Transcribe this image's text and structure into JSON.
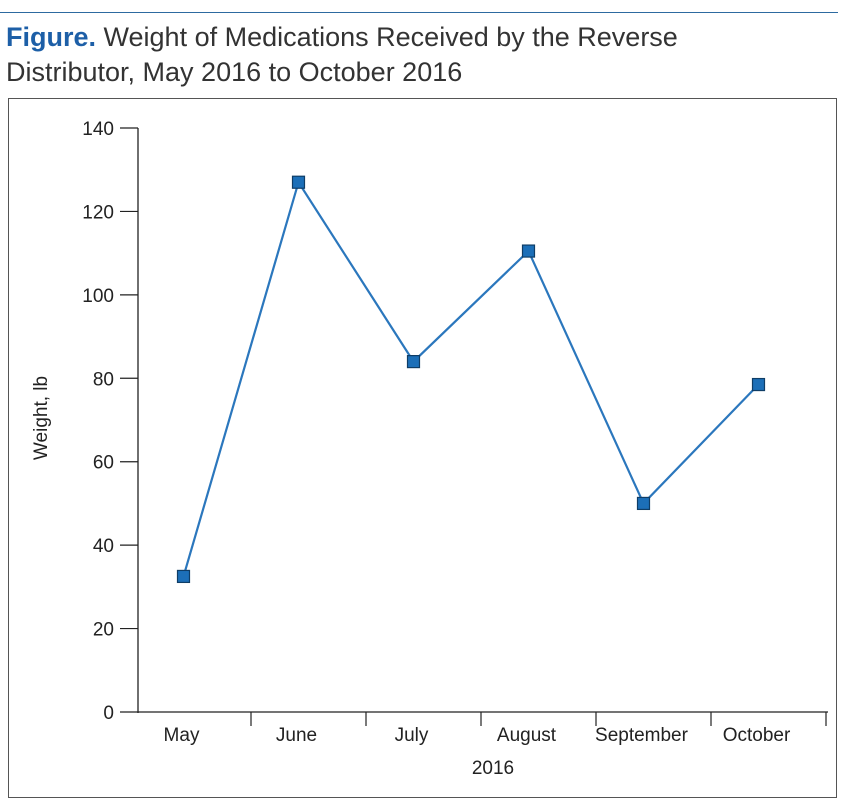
{
  "figure": {
    "label": "Figure.",
    "title": "Weight of Medications Received by the Reverse Distributor, May 2016 to October 2016"
  },
  "colors": {
    "label_color": "#1d5fa7",
    "series_line": "#2b77bd",
    "marker_fill": "#1c6fb8",
    "marker_stroke": "#0f3d66"
  },
  "chart_data": {
    "type": "line",
    "title": "",
    "xlabel": "2016",
    "ylabel": "Weight, lb",
    "categories": [
      "May",
      "June",
      "July",
      "August",
      "September",
      "October"
    ],
    "values": [
      32.5,
      127,
      84,
      110.5,
      50,
      78.5
    ],
    "ylim": [
      0,
      140
    ],
    "yticks": [
      0,
      20,
      40,
      60,
      80,
      100,
      120,
      140
    ],
    "marker": "square",
    "grid": false,
    "legend": "none"
  }
}
